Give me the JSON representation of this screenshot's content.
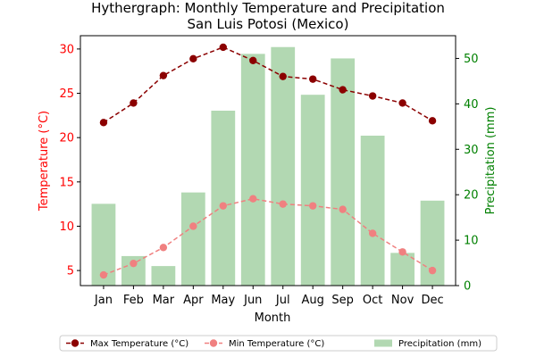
{
  "chart_data": {
    "type": "bar",
    "title": "Hythergraph: Monthly Temperature and Precipitation",
    "subtitle": "San Luis Potosi (Mexico)",
    "xlabel": "Month",
    "ylabel_left": "Temperature (°C)",
    "ylabel_right": "Precipitation (mm)",
    "categories": [
      "Jan",
      "Feb",
      "Mar",
      "Apr",
      "May",
      "Jun",
      "Jul",
      "Aug",
      "Sep",
      "Oct",
      "Nov",
      "Dec"
    ],
    "ylim_left": [
      3.3,
      31.5
    ],
    "ylim_right": [
      0,
      55
    ],
    "yticks_left": [
      5,
      10,
      15,
      20,
      25,
      30
    ],
    "yticks_right": [
      0,
      10,
      20,
      30,
      40,
      50
    ],
    "series": [
      {
        "name": "Max Temperature (°C)",
        "type": "line",
        "axis": "left",
        "color": "#8b0000",
        "values": [
          21.7,
          23.9,
          27.0,
          28.9,
          30.2,
          28.7,
          26.9,
          26.6,
          25.4,
          24.7,
          23.9,
          21.9
        ]
      },
      {
        "name": "Min Temperature (°C)",
        "type": "line",
        "axis": "left",
        "color": "#f08080",
        "values": [
          4.5,
          5.8,
          7.6,
          10.0,
          12.3,
          13.1,
          12.5,
          12.3,
          11.9,
          9.2,
          7.1,
          5.0
        ]
      },
      {
        "name": "Precipitation (mm)",
        "type": "bar",
        "axis": "right",
        "color": "#b2d8b2",
        "values": [
          18,
          6.5,
          4.3,
          20.5,
          38.5,
          51,
          52.5,
          42,
          50,
          33,
          7.2,
          18.7
        ]
      }
    ],
    "legend_position": "bottom",
    "left_axis_color": "#ff0000",
    "right_axis_color": "#008000",
    "grid": false
  }
}
